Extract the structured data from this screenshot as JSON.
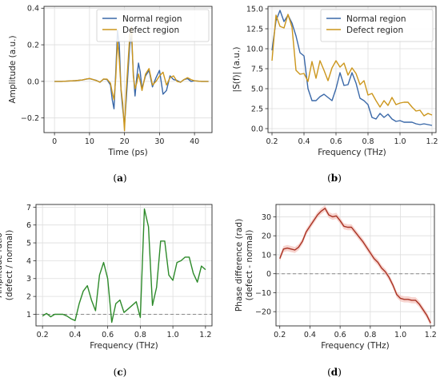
{
  "colors": {
    "normal": "#3a68a8",
    "defect": "#cc961c",
    "ratio": "#2d8a2a",
    "phase": "#a83223",
    "phase_band": "#f3c2bb",
    "grid": "#dedede",
    "frame": "#2b2b2b",
    "refline": "#8a8a8a"
  },
  "chart_data": [
    {
      "type": "line",
      "caption": "a",
      "xlabel": "Time (ps)",
      "ylabel": "Amplitude (a.u.)",
      "xlim": [
        -3,
        45
      ],
      "ylim": [
        -0.28,
        0.41
      ],
      "xticks": [
        0,
        10,
        20,
        30,
        40
      ],
      "yticks": [
        -0.2,
        0.0,
        0.2,
        0.4
      ],
      "xtick_labels": [
        "0",
        "10",
        "20",
        "30",
        "40"
      ],
      "ytick_labels": [
        "−0.2",
        "0.0",
        "0.2",
        "0.4"
      ],
      "grid": true,
      "legend": "top-right",
      "series": [
        {
          "name": "Normal region",
          "color_key": "normal",
          "x": [
            0,
            2,
            4,
            6,
            8,
            9,
            10,
            11,
            12,
            13,
            14,
            15,
            16,
            16.5,
            17,
            17.5,
            18,
            18.5,
            19,
            19.5,
            20,
            20.5,
            21,
            21.5,
            22,
            22.5,
            23,
            23.5,
            24,
            24.5,
            25,
            26,
            27,
            28,
            29,
            30,
            31,
            32,
            33,
            34,
            35,
            36,
            37,
            38,
            39,
            40,
            42,
            44
          ],
          "y": [
            0,
            0,
            0.002,
            0.004,
            0.008,
            0.012,
            0.015,
            0.01,
            0.005,
            -0.005,
            0.012,
            0.01,
            -0.02,
            -0.1,
            -0.15,
            0.05,
            0.28,
            0.2,
            -0.05,
            -0.15,
            -0.24,
            -0.1,
            0.05,
            0.2,
            0.25,
            0.05,
            -0.08,
            0.02,
            0.1,
            0.05,
            -0.04,
            0.03,
            0.06,
            -0.03,
            0.02,
            0.06,
            -0.07,
            -0.05,
            0.03,
            0.01,
            0.005,
            -0.005,
            0.01,
            0.015,
            0.0,
            0.003,
            0,
            0
          ]
        },
        {
          "name": "Defect region",
          "color_key": "defect",
          "x": [
            0,
            2,
            4,
            6,
            8,
            9,
            10,
            11,
            12,
            13,
            14,
            15,
            16,
            16.5,
            17,
            17.5,
            18,
            18.5,
            19,
            19.5,
            20,
            20.5,
            21,
            21.5,
            22,
            22.5,
            23,
            23.5,
            24,
            24.5,
            25,
            26,
            27,
            28,
            29,
            30,
            31,
            32,
            33,
            34,
            35,
            36,
            37,
            38,
            39,
            40,
            42,
            44
          ],
          "y": [
            0,
            0,
            0.002,
            0.004,
            0.008,
            0.012,
            0.016,
            0.01,
            0.004,
            -0.004,
            0.013,
            0.012,
            -0.01,
            -0.06,
            -0.1,
            0.02,
            0.22,
            0.12,
            -0.04,
            -0.12,
            -0.27,
            -0.05,
            0.1,
            0.25,
            0.3,
            0.03,
            -0.04,
            -0.01,
            0.04,
            0.0,
            -0.05,
            0.04,
            0.07,
            -0.02,
            0.0,
            0.03,
            0.05,
            -0.02,
            0.02,
            0.03,
            0.0,
            -0.005,
            0.01,
            0.02,
            0.01,
            0.003,
            0,
            0
          ]
        }
      ]
    },
    {
      "type": "line",
      "caption": "b",
      "xlabel": "Frequency (THz)",
      "ylabel": "|S(f)| (a.u.)",
      "xlim": [
        0.175,
        1.225
      ],
      "ylim": [
        -0.5,
        15.3
      ],
      "xticks": [
        0.2,
        0.4,
        0.6,
        0.8,
        1.0,
        1.2
      ],
      "yticks": [
        0.0,
        2.5,
        5.0,
        7.5,
        10.0,
        12.5,
        15.0
      ],
      "xtick_labels": [
        "0.2",
        "0.4",
        "0.6",
        "0.8",
        "1.0",
        "1.2"
      ],
      "ytick_labels": [
        "0.0",
        "2.5",
        "5.0",
        "7.5",
        "10.0",
        "12.5",
        "15.0"
      ],
      "grid": true,
      "legend": "top-right",
      "series": [
        {
          "name": "Normal region",
          "color_key": "normal",
          "x": [
            0.2,
            0.225,
            0.25,
            0.275,
            0.3,
            0.325,
            0.35,
            0.375,
            0.4,
            0.425,
            0.45,
            0.475,
            0.5,
            0.525,
            0.55,
            0.575,
            0.6,
            0.625,
            0.65,
            0.675,
            0.7,
            0.725,
            0.75,
            0.775,
            0.8,
            0.825,
            0.85,
            0.875,
            0.9,
            0.925,
            0.95,
            0.975,
            1.0,
            1.025,
            1.05,
            1.075,
            1.1,
            1.125,
            1.15,
            1.175,
            1.2
          ],
          "y": [
            9.8,
            13.5,
            14.8,
            13.4,
            14.2,
            13.2,
            11.6,
            9.5,
            9.1,
            5.0,
            3.5,
            3.5,
            4.0,
            4.3,
            3.9,
            3.5,
            5.0,
            7.0,
            5.4,
            5.5,
            7.0,
            5.7,
            3.8,
            3.5,
            3.0,
            1.4,
            1.2,
            1.9,
            1.4,
            1.8,
            1.2,
            0.9,
            1.0,
            0.8,
            0.8,
            0.8,
            0.6,
            0.5,
            0.6,
            0.5,
            0.4
          ]
        },
        {
          "name": "Defect region",
          "color_key": "defect",
          "x": [
            0.2,
            0.225,
            0.25,
            0.275,
            0.3,
            0.325,
            0.35,
            0.375,
            0.4,
            0.425,
            0.45,
            0.475,
            0.5,
            0.525,
            0.55,
            0.575,
            0.6,
            0.625,
            0.65,
            0.675,
            0.7,
            0.725,
            0.75,
            0.775,
            0.8,
            0.825,
            0.85,
            0.875,
            0.9,
            0.925,
            0.95,
            0.975,
            1.0,
            1.025,
            1.05,
            1.075,
            1.1,
            1.125,
            1.15,
            1.175,
            1.2
          ],
          "y": [
            8.5,
            14.2,
            12.8,
            12.6,
            14.3,
            12.7,
            7.3,
            6.8,
            6.9,
            5.9,
            8.4,
            6.3,
            8.5,
            7.3,
            6.0,
            7.6,
            8.5,
            7.7,
            8.2,
            6.7,
            7.6,
            6.9,
            5.5,
            6.0,
            4.2,
            4.4,
            3.5,
            2.7,
            3.5,
            2.9,
            3.9,
            3.0,
            3.2,
            3.3,
            3.3,
            2.7,
            2.2,
            2.3,
            1.6,
            1.9,
            1.7
          ]
        }
      ]
    },
    {
      "type": "line",
      "caption": "c",
      "xlabel": "Frequency (THz)",
      "ylabel": "Amplitude ratio\n(defect / normal)",
      "xlim": [
        0.16,
        1.24
      ],
      "ylim": [
        0.35,
        7.15
      ],
      "xticks": [
        0.2,
        0.4,
        0.6,
        0.8,
        1.0,
        1.2
      ],
      "yticks": [
        1,
        2,
        3,
        4,
        5,
        6,
        7
      ],
      "xtick_labels": [
        "0.2",
        "0.4",
        "0.6",
        "0.8",
        "1.0",
        "1.2"
      ],
      "ytick_labels": [
        "1",
        "2",
        "3",
        "4",
        "5",
        "6",
        "7"
      ],
      "grid": true,
      "reference_line_y": 1,
      "series": [
        {
          "color_key": "ratio",
          "x": [
            0.2,
            0.225,
            0.25,
            0.275,
            0.3,
            0.325,
            0.35,
            0.375,
            0.4,
            0.425,
            0.45,
            0.475,
            0.5,
            0.525,
            0.55,
            0.575,
            0.6,
            0.625,
            0.65,
            0.675,
            0.7,
            0.725,
            0.75,
            0.775,
            0.8,
            0.825,
            0.85,
            0.875,
            0.9,
            0.925,
            0.95,
            0.975,
            1.0,
            1.025,
            1.05,
            1.075,
            1.1,
            1.125,
            1.15,
            1.175,
            1.2
          ],
          "y": [
            0.9,
            1.05,
            0.86,
            1.0,
            1.0,
            1.0,
            0.9,
            0.75,
            0.65,
            1.6,
            2.3,
            2.6,
            1.8,
            1.2,
            3.2,
            3.9,
            3.0,
            0.55,
            1.6,
            1.8,
            1.1,
            1.3,
            1.5,
            1.7,
            0.82,
            6.9,
            5.9,
            1.5,
            2.5,
            5.1,
            5.1,
            3.2,
            2.9,
            3.9,
            4.0,
            4.2,
            4.2,
            3.3,
            2.8,
            3.7,
            3.5
          ]
        }
      ]
    },
    {
      "type": "line",
      "caption": "d",
      "xlabel": "Frequency (THz)",
      "ylabel": "Phase difference (rad)\n(defect - normal)",
      "xlim": [
        0.175,
        1.225
      ],
      "ylim": [
        -27.5,
        36.5
      ],
      "xticks": [
        0.2,
        0.4,
        0.6,
        0.8,
        1.0,
        1.2
      ],
      "yticks": [
        -20,
        -10,
        0,
        10,
        20,
        30
      ],
      "xtick_labels": [
        "0.2",
        "0.4",
        "0.6",
        "0.8",
        "1.0",
        "1.2"
      ],
      "ytick_labels": [
        "−20",
        "−10",
        "0",
        "10",
        "20",
        "30"
      ],
      "grid": true,
      "reference_line_y": 0,
      "series": [
        {
          "color_key": "phase",
          "x": [
            0.2,
            0.225,
            0.25,
            0.275,
            0.3,
            0.325,
            0.35,
            0.375,
            0.4,
            0.425,
            0.45,
            0.475,
            0.5,
            0.525,
            0.55,
            0.575,
            0.6,
            0.625,
            0.65,
            0.675,
            0.7,
            0.725,
            0.75,
            0.775,
            0.8,
            0.825,
            0.85,
            0.875,
            0.9,
            0.925,
            0.95,
            0.975,
            1.0,
            1.025,
            1.05,
            1.075,
            1.1,
            1.125,
            1.15,
            1.175,
            1.2
          ],
          "y": [
            8,
            13,
            13.5,
            13,
            12.5,
            14,
            17,
            22,
            25,
            28,
            31,
            33,
            34.5,
            31,
            30,
            30.5,
            28,
            25,
            24.5,
            24.5,
            22,
            19.5,
            17,
            14,
            11,
            8,
            6,
            3,
            1,
            -2,
            -6,
            -11,
            -13,
            -13.5,
            -13.5,
            -14,
            -14,
            -16,
            -19,
            -22,
            -26
          ]
        }
      ]
    }
  ]
}
